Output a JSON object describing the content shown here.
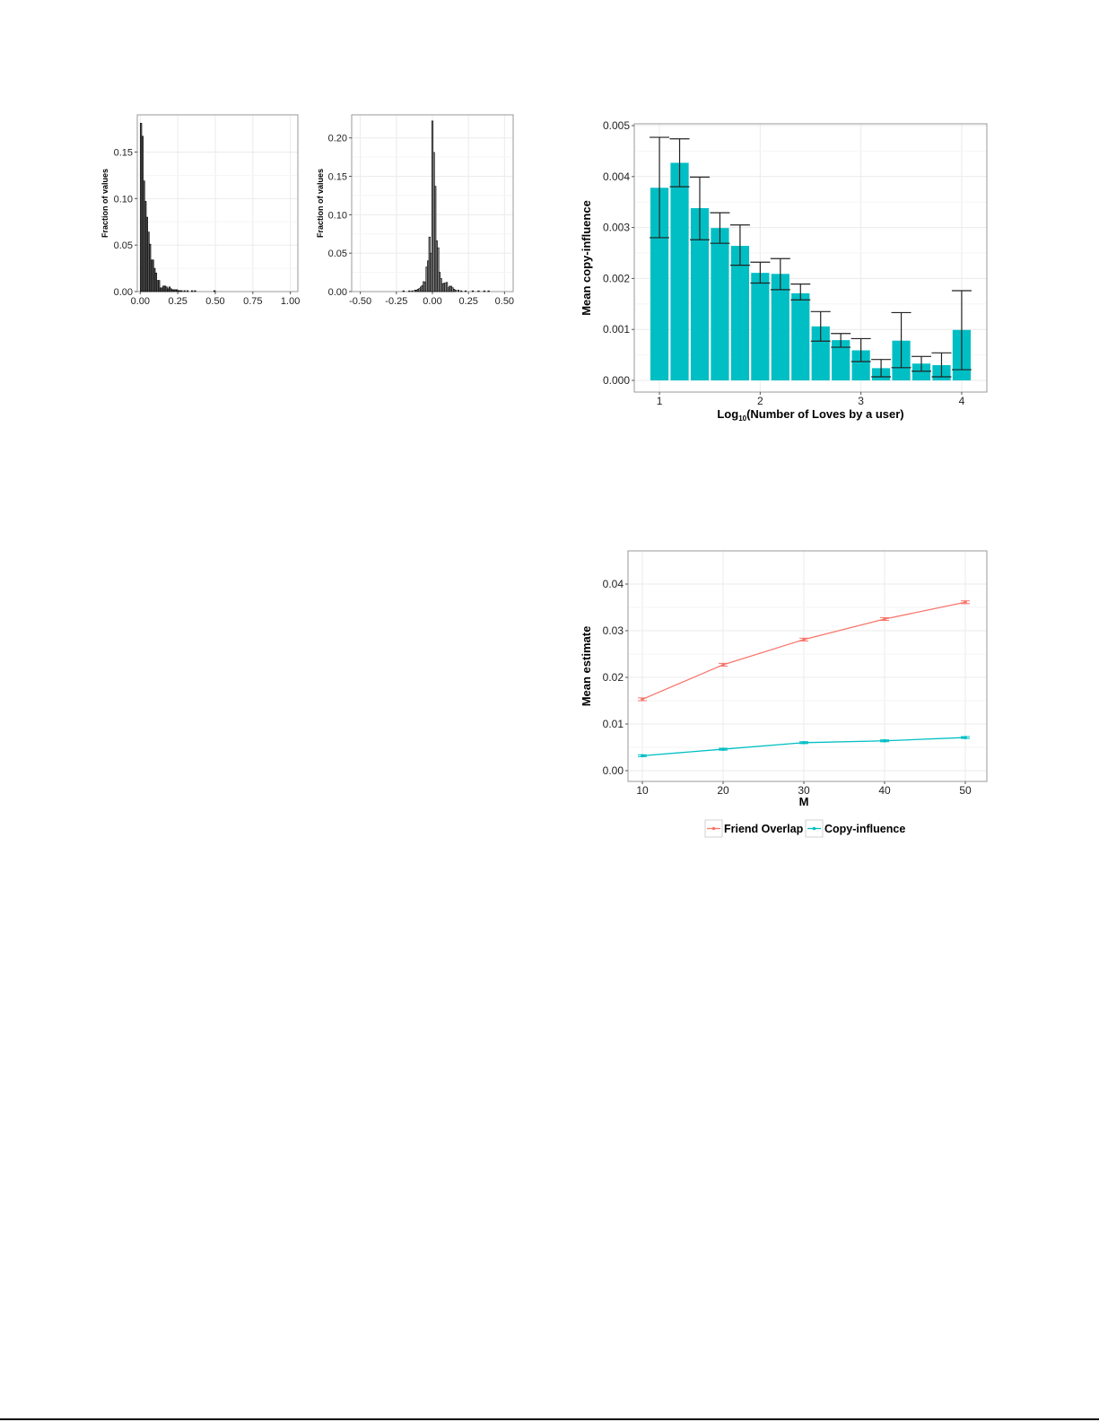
{
  "chart_data": [
    {
      "id": "hist-left",
      "type": "bar",
      "title": "",
      "xlabel": "",
      "ylabel": "Fraction of values",
      "xlim": [
        -0.02,
        1.05
      ],
      "ylim": [
        0,
        0.19
      ],
      "xticks": [
        "0.00",
        "0.25",
        "0.50",
        "0.75",
        "1.00"
      ],
      "xtick_values": [
        0,
        0.25,
        0.5,
        0.75,
        1.0
      ],
      "yticks": [
        "0.00",
        "0.05",
        "0.10",
        "0.15"
      ],
      "ytick_values": [
        0,
        0.05,
        0.1,
        0.15
      ],
      "grid": true,
      "bin_width": 0.01,
      "x": [
        0.01,
        0.02,
        0.03,
        0.04,
        0.05,
        0.06,
        0.07,
        0.08,
        0.09,
        0.1,
        0.11,
        0.12,
        0.13,
        0.14,
        0.15,
        0.16,
        0.17,
        0.18,
        0.19,
        0.2,
        0.21,
        0.22,
        0.23,
        0.24,
        0.25,
        0.26,
        0.27,
        0.28,
        0.3,
        0.32,
        0.35,
        0.37,
        0.5
      ],
      "values": [
        0.181,
        0.167,
        0.119,
        0.097,
        0.08,
        0.064,
        0.051,
        0.034,
        0.034,
        0.025,
        0.02,
        0.012,
        0.012,
        0.004,
        0.004,
        0.006,
        0.006,
        0.005,
        0.003,
        0.005,
        0.003,
        0.002,
        0.002,
        0.002,
        0.002,
        0.001,
        0.001,
        0.001,
        0.001,
        0.001,
        0.001,
        0.001,
        0.001
      ]
    },
    {
      "id": "hist-right",
      "type": "bar",
      "title": "",
      "xlabel": "",
      "ylabel": "Fraction of values",
      "xlim": [
        -0.56,
        0.56
      ],
      "ylim": [
        0,
        0.23
      ],
      "xticks": [
        "-0.50",
        "-0.25",
        "0.00",
        "0.25",
        "0.50"
      ],
      "xtick_values": [
        -0.5,
        -0.25,
        0,
        0.25,
        0.5
      ],
      "yticks": [
        "0.00",
        "0.05",
        "0.10",
        "0.15",
        "0.20"
      ],
      "ytick_values": [
        0,
        0.05,
        0.1,
        0.15,
        0.2
      ],
      "grid": true,
      "bin_width": 0.01,
      "x": [
        -0.2,
        -0.16,
        -0.14,
        -0.12,
        -0.11,
        -0.1,
        -0.09,
        -0.08,
        -0.07,
        -0.06,
        -0.05,
        -0.04,
        -0.03,
        -0.02,
        -0.01,
        0.0,
        0.01,
        0.02,
        0.03,
        0.04,
        0.05,
        0.06,
        0.07,
        0.08,
        0.09,
        0.1,
        0.11,
        0.12,
        0.13,
        0.14,
        0.15,
        0.16,
        0.18,
        0.2,
        0.23,
        0.28,
        0.32,
        0.36,
        0.39
      ],
      "values": [
        0.001,
        0.001,
        0.001,
        0.002,
        0.002,
        0.003,
        0.004,
        0.006,
        0.008,
        0.013,
        0.012,
        0.032,
        0.04,
        0.071,
        0.05,
        0.222,
        0.181,
        0.137,
        0.066,
        0.057,
        0.025,
        0.017,
        0.01,
        0.011,
        0.011,
        0.012,
        0.005,
        0.007,
        0.007,
        0.005,
        0.003,
        0.002,
        0.002,
        0.001,
        0.001,
        0.001,
        0.001,
        0.001,
        0.001
      ]
    },
    {
      "id": "bar-copy-influence",
      "type": "bar",
      "title": "",
      "xlabel": "Log10(Number of Loves by a user)",
      "xlabel_base": "Log",
      "xlabel_sub": "10",
      "xlabel_rest": "(Number of Loves by a user)",
      "ylabel": "Mean copy-influence",
      "xlim": [
        0.75,
        4.25
      ],
      "ylim": [
        0,
        0.005
      ],
      "xticks": [
        "1",
        "2",
        "3",
        "4"
      ],
      "xtick_values": [
        1,
        2,
        3,
        4
      ],
      "yticks": [
        "0.000",
        "0.001",
        "0.002",
        "0.003",
        "0.004",
        "0.005"
      ],
      "ytick_values": [
        0,
        0.001,
        0.002,
        0.003,
        0.004,
        0.005
      ],
      "grid": true,
      "bar_color": "#00BFC4",
      "x": [
        1.0,
        1.2,
        1.4,
        1.6,
        1.8,
        2.0,
        2.2,
        2.4,
        2.6,
        2.8,
        3.0,
        3.2,
        3.4,
        3.6,
        3.8,
        4.0
      ],
      "values": [
        0.00378,
        0.00427,
        0.00338,
        0.00299,
        0.00264,
        0.00211,
        0.00209,
        0.00171,
        0.00106,
        0.00079,
        0.00059,
        0.00024,
        0.00078,
        0.00033,
        0.0003,
        0.00099
      ],
      "error_low": [
        0.0028,
        0.0038,
        0.00276,
        0.00269,
        0.00226,
        0.00191,
        0.00178,
        0.00158,
        0.00077,
        0.00065,
        0.00037,
        7e-05,
        0.00025,
        0.00018,
        7e-05,
        0.00021
      ],
      "error_high": [
        0.00477,
        0.00474,
        0.00399,
        0.00329,
        0.00305,
        0.00232,
        0.00239,
        0.00189,
        0.00135,
        0.00092,
        0.00082,
        0.00041,
        0.00133,
        0.00047,
        0.00054,
        0.00176
      ]
    },
    {
      "id": "line-mean-estimate",
      "type": "line",
      "title": "",
      "xlabel": "M",
      "ylabel": "Mean estimate",
      "xlim": [
        7.5,
        52.5
      ],
      "ylim": [
        -0.002,
        0.047
      ],
      "xticks": [
        "10",
        "20",
        "30",
        "40",
        "50"
      ],
      "xtick_values": [
        10,
        20,
        30,
        40,
        50
      ],
      "yticks": [
        "0.00",
        "0.01",
        "0.02",
        "0.03",
        "0.04"
      ],
      "ytick_values": [
        0,
        0.01,
        0.02,
        0.03,
        0.04
      ],
      "grid": true,
      "legend_position": "bottom",
      "x": [
        10,
        20,
        30,
        40,
        50
      ],
      "series": [
        {
          "name": "Friend Overlap",
          "color": "#F8766D",
          "values": [
            0.0153,
            0.0227,
            0.0281,
            0.0325,
            0.0361
          ],
          "error": 0.0003
        },
        {
          "name": "Copy-influence",
          "color": "#00BFC4",
          "values": [
            0.0032,
            0.0046,
            0.006,
            0.0064,
            0.0071
          ],
          "error": 0.0002
        }
      ]
    }
  ]
}
